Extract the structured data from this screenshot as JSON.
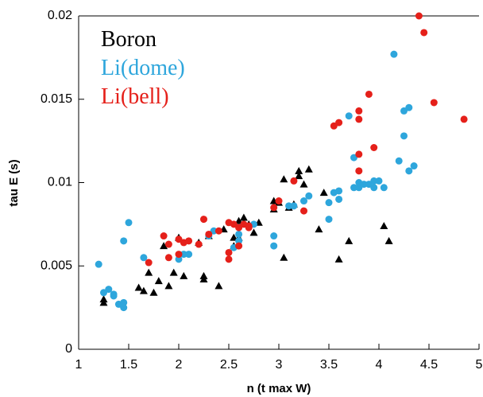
{
  "chart_data": {
    "type": "scatter",
    "xlabel": "n (t max W)",
    "ylabel": "tau E (s)",
    "xlim": [
      1,
      5
    ],
    "ylim": [
      0,
      0.02
    ],
    "xticks": [
      1,
      1.5,
      2,
      2.5,
      3,
      3.5,
      4,
      4.5,
      5
    ],
    "yticks": [
      0,
      0.005,
      0.01,
      0.015,
      0.02
    ],
    "series": [
      {
        "name": "Boron",
        "color": "#000000",
        "marker": "triangle",
        "x": [
          1.25,
          1.25,
          1.6,
          1.65,
          1.7,
          1.75,
          1.8,
          1.85,
          1.9,
          1.95,
          2.0,
          2.05,
          2.2,
          2.25,
          2.25,
          2.3,
          2.4,
          2.45,
          2.55,
          2.55,
          2.6,
          2.6,
          2.65,
          2.7,
          2.75,
          2.8,
          2.95,
          2.95,
          3.0,
          3.05,
          3.05,
          3.1,
          3.2,
          3.2,
          3.3,
          3.4,
          3.6,
          3.7,
          4.05,
          4.1,
          3.45,
          3.25,
          3.15
        ],
        "values": [
          0.0028,
          0.003,
          0.0037,
          0.0035,
          0.0046,
          0.0034,
          0.0041,
          0.0062,
          0.0038,
          0.0046,
          0.0067,
          0.0044,
          0.0064,
          0.0044,
          0.0042,
          0.0068,
          0.0038,
          0.0072,
          0.0067,
          0.0062,
          0.0067,
          0.0077,
          0.0079,
          0.0075,
          0.007,
          0.0076,
          0.0084,
          0.0089,
          0.0088,
          0.0102,
          0.0055,
          0.0085,
          0.0104,
          0.0107,
          0.0108,
          0.0072,
          0.0054,
          0.0065,
          0.0074,
          0.0065,
          0.0094,
          0.0099,
          0.0087
        ]
      },
      {
        "name": "Li(dome)",
        "color": "#2ea6dc",
        "marker": "circle",
        "x": [
          1.2,
          1.25,
          1.3,
          1.35,
          1.35,
          1.4,
          1.45,
          1.45,
          1.45,
          1.5,
          1.65,
          2.0,
          2.05,
          2.1,
          2.3,
          2.35,
          2.55,
          2.6,
          2.6,
          2.75,
          2.95,
          2.95,
          3.1,
          3.15,
          3.25,
          3.3,
          3.5,
          3.5,
          3.55,
          3.6,
          3.6,
          3.75,
          3.8,
          3.8,
          3.9,
          3.95,
          3.95,
          4.0,
          4.05,
          3.7,
          3.75,
          4.15,
          4.2,
          4.25,
          4.25,
          4.3,
          4.3,
          4.35,
          3.85
        ],
        "values": [
          0.0051,
          0.0034,
          0.0036,
          0.0033,
          0.0032,
          0.0027,
          0.0025,
          0.0028,
          0.0065,
          0.0076,
          0.0055,
          0.0054,
          0.0057,
          0.0057,
          0.0068,
          0.0071,
          0.0061,
          0.0065,
          0.0069,
          0.0075,
          0.0068,
          0.0062,
          0.0086,
          0.0086,
          0.0089,
          0.0092,
          0.0088,
          0.0078,
          0.0094,
          0.0095,
          0.009,
          0.0115,
          0.0097,
          0.01,
          0.0099,
          0.0101,
          0.0097,
          0.0101,
          0.0097,
          0.014,
          0.0097,
          0.0177,
          0.0113,
          0.0128,
          0.0143,
          0.0145,
          0.0107,
          0.011,
          0.0099
        ]
      },
      {
        "name": "Li(bell)",
        "color": "#e5201a",
        "marker": "circle",
        "x": [
          1.7,
          1.85,
          1.9,
          1.9,
          2.0,
          2.0,
          2.05,
          2.1,
          2.2,
          2.25,
          2.3,
          2.4,
          2.5,
          2.5,
          2.55,
          2.6,
          2.65,
          2.7,
          2.7,
          2.6,
          2.5,
          2.95,
          3.0,
          3.15,
          3.25,
          3.55,
          3.6,
          3.8,
          3.8,
          3.8,
          3.8,
          3.9,
          3.95,
          4.4,
          4.45,
          4.55,
          4.85
        ],
        "values": [
          0.0052,
          0.0068,
          0.0055,
          0.0063,
          0.0066,
          0.0057,
          0.0064,
          0.0065,
          0.0063,
          0.0078,
          0.0069,
          0.0071,
          0.0054,
          0.0076,
          0.0075,
          0.0073,
          0.0075,
          0.0073,
          0.0074,
          0.0062,
          0.0058,
          0.0085,
          0.0089,
          0.0101,
          0.0083,
          0.0134,
          0.0136,
          0.0143,
          0.0138,
          0.0107,
          0.0117,
          0.0153,
          0.0121,
          0.02,
          0.019,
          0.0148,
          0.0138
        ]
      }
    ]
  }
}
